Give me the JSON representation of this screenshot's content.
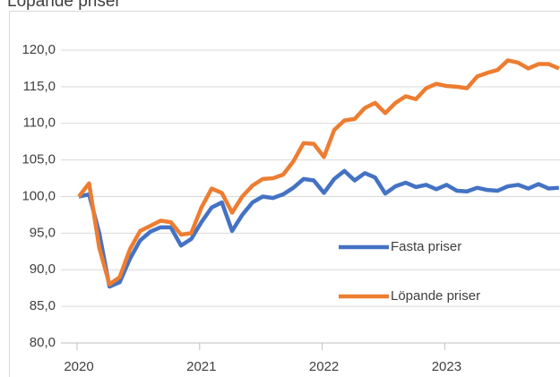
{
  "chart_data": {
    "type": "line",
    "title": "Löpande priser",
    "categories": [
      "2020",
      null,
      null,
      null,
      null,
      null,
      null,
      null,
      null,
      null,
      null,
      null,
      "2021",
      null,
      null,
      null,
      null,
      null,
      null,
      null,
      null,
      null,
      null,
      null,
      "2022",
      null,
      null,
      null,
      null,
      null,
      null,
      null,
      null,
      null,
      null,
      null,
      "2023",
      null,
      null,
      null,
      null,
      null,
      null,
      null,
      null,
      null,
      null,
      null
    ],
    "series": [
      {
        "name": "Fasta priser",
        "color": "#4472c4",
        "values": [
          100,
          100.3,
          95,
          87.7,
          88.3,
          91.5,
          94,
          95.2,
          95.8,
          95.8,
          93.3,
          94.2,
          96.5,
          98.5,
          99.2,
          95.3,
          97.5,
          99.2,
          100,
          99.8,
          100.3,
          101.2,
          102.4,
          102.2,
          100.5,
          102.4,
          103.5,
          102.2,
          103.2,
          102.6,
          100.4,
          101.4,
          101.9,
          101.3,
          101.6,
          101,
          101.6,
          100.8,
          100.7,
          101.2,
          100.9,
          100.8,
          101.4,
          101.6,
          101.1,
          101.7,
          101.1,
          101.2
        ]
      },
      {
        "name": "Löpande priser",
        "color": "#ed7d31",
        "values": [
          100,
          101.8,
          93,
          88,
          89,
          92.8,
          95.3,
          96,
          96.7,
          96.5,
          94.8,
          95,
          98.5,
          101.1,
          100.5,
          97.8,
          100,
          101.5,
          102.4,
          102.5,
          103,
          104.8,
          107.3,
          107.2,
          105.4,
          109.1,
          110.4,
          110.6,
          112.1,
          112.8,
          111.4,
          112.8,
          113.7,
          113.3,
          114.8,
          115.4,
          115.1,
          115,
          114.8,
          116.4,
          116.9,
          117.3,
          118.6,
          118.3,
          117.5,
          118.1,
          118.1,
          117.5
        ]
      }
    ],
    "ylim": [
      80,
      120
    ],
    "yticks": [
      {
        "value": 80,
        "label": "80,0"
      },
      {
        "value": 85,
        "label": "85,0"
      },
      {
        "value": 90,
        "label": "90,0"
      },
      {
        "value": 95,
        "label": "95,0"
      },
      {
        "value": 100,
        "label": "100,0"
      },
      {
        "value": 105,
        "label": "105,0"
      },
      {
        "value": 110,
        "label": "110,0"
      },
      {
        "value": 115,
        "label": "115,0"
      },
      {
        "value": 120,
        "label": "120,0"
      }
    ],
    "grid": true
  }
}
